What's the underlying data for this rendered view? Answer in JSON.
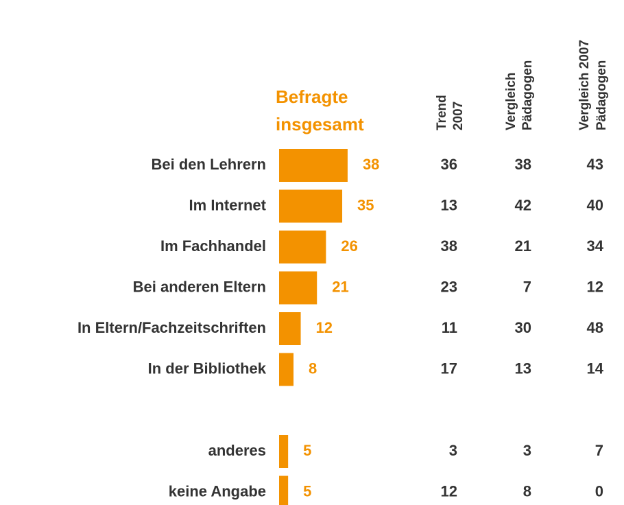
{
  "chart_data": {
    "type": "bar",
    "categories": [
      "Bei den Lehrern",
      "Im Internet",
      "Im Fachhandel",
      "Bei anderen Eltern",
      "In Eltern/Fachzeitschriften",
      "In der Bibliothek",
      "anderes",
      "keine Angabe"
    ],
    "series": [
      {
        "name": [
          "Befragte",
          "insgesamt"
        ],
        "color": "#f39200",
        "values": [
          38,
          35,
          26,
          21,
          12,
          8,
          5,
          5
        ]
      },
      {
        "name": [
          "Trend",
          "2007"
        ],
        "values": [
          36,
          13,
          38,
          23,
          11,
          17,
          3,
          12
        ]
      },
      {
        "name": [
          "Vergleich",
          "Pädagogen"
        ],
        "values": [
          38,
          42,
          21,
          7,
          30,
          13,
          3,
          8
        ]
      },
      {
        "name": [
          "Vergleich 2007",
          "Pädagogen"
        ],
        "values": [
          43,
          40,
          34,
          12,
          48,
          14,
          7,
          0
        ]
      }
    ]
  }
}
